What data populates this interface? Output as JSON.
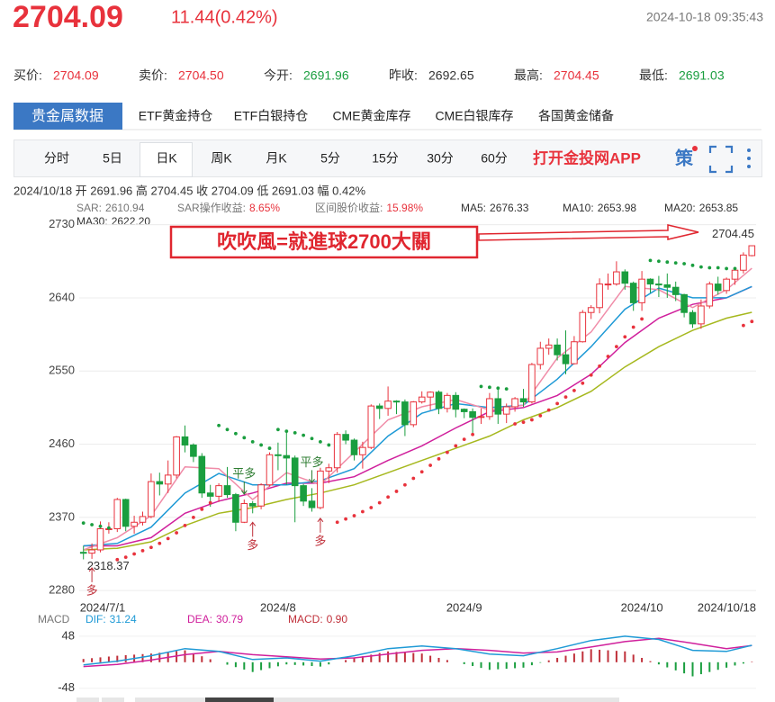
{
  "header": {
    "price": "2704.09",
    "change": "11.44(0.42%)",
    "time": "2024-10-18 09:35:43"
  },
  "quotes": [
    {
      "label": "买价:",
      "value": "2704.09",
      "color": "#e8323c"
    },
    {
      "label": "卖价:",
      "value": "2704.50",
      "color": "#e8323c"
    },
    {
      "label": "今开:",
      "value": "2691.96",
      "color": "#1a9e3f"
    },
    {
      "label": "昨收:",
      "value": "2692.65",
      "color": "#333333"
    },
    {
      "label": "最高:",
      "value": "2704.45",
      "color": "#e8323c"
    },
    {
      "label": "最低:",
      "value": "2691.03",
      "color": "#1a9e3f"
    }
  ],
  "tabs": [
    "贵金属数据",
    "ETF黄金持仓",
    "ETF白银持仓",
    "CME黄金库存",
    "CME白银库存",
    "各国黄金储备"
  ],
  "periods": [
    "分时",
    "5日",
    "日K",
    "周K",
    "月K",
    "5分",
    "15分",
    "30分",
    "60分"
  ],
  "app_link": "打开金投网APP",
  "strategy_icon": "策",
  "chart_data": {
    "type": "candlestick",
    "summary": "2024/10/18 开 2691.96 高 2704.45 收 2704.09 低 2691.03 幅 0.42%",
    "stats": [
      {
        "label": "SAR操作收益:",
        "value": "8.65%"
      },
      {
        "label": "区间股价收益:",
        "value": "15.98%"
      }
    ],
    "ylim": [
      2268,
      2744
    ],
    "yticks": [
      2280,
      2370,
      2460,
      2550,
      2640,
      2730
    ],
    "grid": true,
    "up_color": "#e8323c",
    "down_color": "#1a9e3f",
    "categories": [
      "2024/7/1",
      null,
      null,
      null,
      null,
      null,
      null,
      null,
      null,
      null,
      null,
      null,
      null,
      null,
      null,
      null,
      null,
      null,
      null,
      null,
      null,
      null,
      null,
      "2024/8",
      null,
      null,
      null,
      null,
      null,
      null,
      null,
      null,
      null,
      null,
      null,
      null,
      null,
      null,
      null,
      null,
      null,
      null,
      null,
      null,
      null,
      "2024/9",
      null,
      null,
      null,
      null,
      null,
      null,
      null,
      null,
      null,
      null,
      null,
      null,
      null,
      null,
      null,
      null,
      null,
      null,
      null,
      null,
      "2024/10",
      null,
      null,
      null,
      null,
      null,
      null,
      null,
      null,
      null,
      null,
      null,
      null,
      "2024/10/18"
    ],
    "ohlc": [
      [
        2327,
        2335,
        2318.37,
        2326
      ],
      [
        2326,
        2338,
        2319,
        2330
      ],
      [
        2330,
        2365,
        2327,
        2356
      ],
      [
        2356,
        2364,
        2350,
        2356
      ],
      [
        2356,
        2394,
        2352,
        2392
      ],
      [
        2392,
        2393,
        2353,
        2359
      ],
      [
        2359,
        2372,
        2350,
        2364
      ],
      [
        2364,
        2377,
        2360,
        2371
      ],
      [
        2371,
        2424,
        2369,
        2414
      ],
      [
        2414,
        2425,
        2397,
        2411
      ],
      [
        2411,
        2440,
        2400,
        2422
      ],
      [
        2422,
        2470,
        2418,
        2469
      ],
      [
        2469,
        2483,
        2450,
        2459
      ],
      [
        2459,
        2461,
        2438,
        2445
      ],
      [
        2445,
        2449,
        2394,
        2400
      ],
      [
        2400,
        2410,
        2383,
        2396
      ],
      [
        2396,
        2412,
        2389,
        2409
      ],
      [
        2409,
        2432,
        2394,
        2398
      ],
      [
        2398,
        2400,
        2353,
        2364
      ],
      [
        2364,
        2392,
        2363,
        2387
      ],
      [
        2387,
        2390,
        2375,
        2384
      ],
      [
        2384,
        2412,
        2380,
        2410
      ],
      [
        2410,
        2450,
        2408,
        2447
      ],
      [
        2447,
        2462,
        2428,
        2446
      ],
      [
        2446,
        2477,
        2410,
        2443
      ],
      [
        2443,
        2446,
        2364,
        2409
      ],
      [
        2409,
        2411,
        2384,
        2390
      ],
      [
        2390,
        2406,
        2377,
        2382
      ],
      [
        2382,
        2431,
        2380,
        2427
      ],
      [
        2427,
        2436,
        2412,
        2431
      ],
      [
        2431,
        2475,
        2425,
        2472
      ],
      [
        2472,
        2477,
        2460,
        2465
      ],
      [
        2465,
        2467,
        2440,
        2447
      ],
      [
        2447,
        2463,
        2430,
        2456
      ],
      [
        2456,
        2509,
        2454,
        2507
      ],
      [
        2507,
        2510,
        2491,
        2504
      ],
      [
        2504,
        2531,
        2495,
        2513
      ],
      [
        2513,
        2514,
        2497,
        2512
      ],
      [
        2512,
        2515,
        2470,
        2484
      ],
      [
        2484,
        2513,
        2481,
        2512
      ],
      [
        2512,
        2525,
        2510,
        2518
      ],
      [
        2518,
        2525,
        2502,
        2524
      ],
      [
        2524,
        2526,
        2497,
        2504
      ],
      [
        2504,
        2523,
        2499,
        2520
      ],
      [
        2520,
        2524,
        2493,
        2503
      ],
      [
        2503,
        2504,
        2492,
        2500
      ],
      [
        2500,
        2504,
        2472,
        2493
      ],
      [
        2493,
        2504,
        2485,
        2494
      ],
      [
        2494,
        2523,
        2490,
        2516
      ],
      [
        2516,
        2529,
        2485,
        2497
      ],
      [
        2497,
        2510,
        2486,
        2506
      ],
      [
        2506,
        2518,
        2500,
        2516
      ],
      [
        2516,
        2528,
        2506,
        2512
      ],
      [
        2512,
        2560,
        2510,
        2558
      ],
      [
        2558,
        2586,
        2552,
        2578
      ],
      [
        2578,
        2590,
        2570,
        2582
      ],
      [
        2582,
        2590,
        2563,
        2570
      ],
      [
        2570,
        2600,
        2546,
        2559
      ],
      [
        2559,
        2593,
        2558,
        2586
      ],
      [
        2586,
        2625,
        2585,
        2622
      ],
      [
        2622,
        2631,
        2614,
        2628
      ],
      [
        2628,
        2664,
        2621,
        2657
      ],
      [
        2657,
        2670,
        2650,
        2657
      ],
      [
        2657,
        2685,
        2655,
        2672
      ],
      [
        2672,
        2675,
        2650,
        2658
      ],
      [
        2658,
        2660,
        2624,
        2634
      ],
      [
        2634,
        2673,
        2624,
        2663
      ],
      [
        2663,
        2664,
        2646,
        2657
      ],
      [
        2657,
        2667,
        2641,
        2656
      ],
      [
        2656,
        2670,
        2640,
        2653
      ],
      [
        2653,
        2660,
        2636,
        2644
      ],
      [
        2644,
        2645,
        2616,
        2622
      ],
      [
        2622,
        2625,
        2603,
        2608
      ],
      [
        2608,
        2638,
        2602,
        2630
      ],
      [
        2630,
        2660,
        2627,
        2657
      ],
      [
        2657,
        2666,
        2644,
        2649
      ],
      [
        2649,
        2665,
        2645,
        2663
      ],
      [
        2663,
        2678,
        2656,
        2674
      ],
      [
        2674,
        2696,
        2670,
        2692.65
      ],
      [
        2691.96,
        2704.45,
        2691.03,
        2704.09
      ]
    ],
    "sar": {
      "name": "SAR:",
      "latest": "2610.94",
      "above_color": "#1a9e3f",
      "below_color": "#e8323c",
      "values": [
        2363,
        2361,
        2359,
        2357,
        2318,
        2321,
        2325,
        2329,
        2333,
        2338,
        2344,
        2351,
        2360,
        2370,
        2380,
        2388,
        2483,
        2478,
        2473,
        2468,
        2463,
        2459,
        2455,
        2478,
        2476,
        2474,
        2471,
        2467,
        2463,
        2459,
        2364,
        2368,
        2372,
        2377,
        2382,
        2388,
        2395,
        2402,
        2410,
        2418,
        2426,
        2434,
        2442,
        2450,
        2458,
        2466,
        2472,
        2531,
        2530,
        2529,
        2528,
        2485,
        2487,
        2490,
        2495,
        2502,
        2510,
        2518,
        2526,
        2535,
        2545,
        2556,
        2568,
        2580,
        2592,
        2604,
        2614,
        2686,
        2685,
        2684,
        2683,
        2682,
        2680,
        2678,
        2677,
        2677,
        2676,
        2676,
        2606,
        2610.94
      ]
    },
    "ma_x": [
      0,
      4,
      8,
      12,
      16,
      20,
      24,
      28,
      32,
      36,
      40,
      44,
      48,
      52,
      56,
      60,
      64,
      68,
      72,
      76,
      79
    ],
    "ma": [
      {
        "name": "MA5:",
        "latest": "2676.33",
        "color": "#f08ca8",
        "values": [
          2330,
          2345,
          2372,
          2432,
          2430,
          2392,
          2425,
          2410,
          2450,
          2490,
          2506,
          2515,
          2502,
          2508,
          2566,
          2598,
          2654,
          2650,
          2628,
          2650,
          2676.33
        ]
      },
      {
        "name": "MA10:",
        "latest": "2653.98",
        "color": "#1f9ad6",
        "values": [
          2335,
          2338,
          2358,
          2400,
          2424,
          2410,
          2410,
          2415,
          2430,
          2470,
          2498,
          2510,
          2505,
          2508,
          2540,
          2580,
          2626,
          2652,
          2640,
          2640,
          2653.98
        ]
      },
      {
        "name": "MA20:",
        "latest": "2653.85",
        "color": "#d0209c",
        "values": [
          2335,
          2335,
          2345,
          2375,
          2390,
          2400,
          2412,
          2412,
          2420,
          2440,
          2458,
          2480,
          2500,
          2505,
          2520,
          2546,
          2585,
          2615,
          2632,
          2640,
          2653.85
        ]
      },
      {
        "name": "MA30:",
        "latest": "2622.20",
        "color": "#a6b81e",
        "values": [
          2330,
          2332,
          2340,
          2360,
          2375,
          2382,
          2392,
          2400,
          2410,
          2425,
          2440,
          2455,
          2470,
          2490,
          2505,
          2525,
          2555,
          2580,
          2600,
          2615,
          2622.2
        ]
      }
    ],
    "annotations": {
      "callout": "吹吹風=就進球2700大關",
      "high": 2704.45,
      "low": 2318.37
    },
    "signals": [
      {
        "at": 1,
        "text": "多",
        "side": "below"
      },
      {
        "at": 19,
        "text": "平多",
        "side": "above"
      },
      {
        "at": 20,
        "text": "多",
        "side": "below"
      },
      {
        "at": 27,
        "text": "平多",
        "side": "above"
      },
      {
        "at": 28,
        "text": "多",
        "side": "below"
      }
    ],
    "macd": {
      "title": "MACD",
      "ylim": [
        -65,
        76
      ],
      "yticks": [
        48,
        -48
      ],
      "dif": {
        "name": "DIF:",
        "latest": "31.24",
        "color": "#1f9ad6",
        "values": [
          -5,
          2,
          12,
          25,
          20,
          5,
          8,
          2,
          12,
          25,
          30,
          25,
          15,
          12,
          25,
          40,
          48,
          42,
          22,
          20,
          31.24
        ]
      },
      "dea": {
        "name": "DEA:",
        "latest": "30.79",
        "color": "#d0209c",
        "values": [
          -8,
          -4,
          4,
          14,
          20,
          14,
          10,
          6,
          8,
          15,
          22,
          25,
          22,
          17,
          19,
          28,
          38,
          44,
          35,
          25,
          30.79
        ]
      },
      "hist": {
        "name": "MACD:",
        "latest": "0.90",
        "up_color": "#c0303a",
        "down_color": "#1a9e3f",
        "values": [
          6,
          7.5,
          9,
          10.5,
          12,
          13,
          14,
          15,
          16,
          17.5,
          19,
          20.5,
          22,
          16.5,
          11,
          5.5,
          0,
          -4.5,
          -9,
          -13.5,
          -18,
          -14.5,
          -11,
          -7.5,
          -4,
          -5,
          -6,
          -7,
          -8,
          -4,
          0,
          4,
          8,
          11,
          14,
          17,
          20,
          19,
          18,
          17,
          16,
          12,
          8,
          4,
          0,
          -3.5,
          -7,
          -10.5,
          -14,
          -13,
          -12,
          -11,
          -10,
          -5.5,
          -1,
          3.5,
          8,
          12,
          16,
          20,
          24,
          23,
          22,
          21,
          20,
          14,
          8,
          2,
          -4,
          -9.5,
          -15,
          -20.5,
          -26,
          -22,
          -18,
          -14,
          -10,
          -6,
          -2.5,
          0.9
        ]
      }
    }
  }
}
